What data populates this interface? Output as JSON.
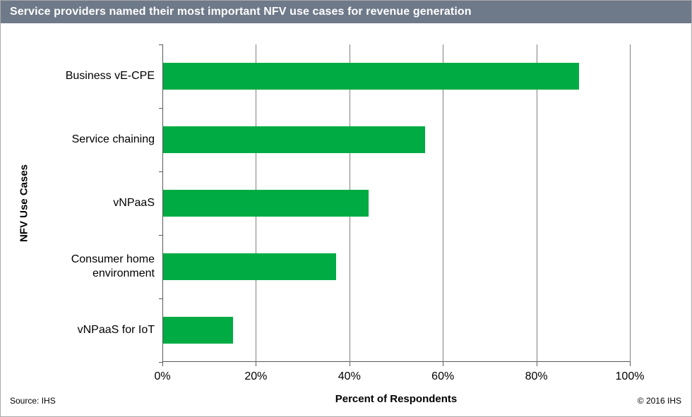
{
  "header": {
    "title": "Service providers named their most important NFV use cases for revenue generation"
  },
  "chart_data": {
    "type": "bar",
    "orientation": "horizontal",
    "title": "Service providers named their most important NFV use cases for revenue generation",
    "categories": [
      "Business vE-CPE",
      "Service chaining",
      "vNPaaS",
      "Consumer home environment",
      "vNPaaS for IoT"
    ],
    "values": [
      89,
      56,
      44,
      37,
      15
    ],
    "unit": "%",
    "xlabel": "Percent of Respondents",
    "ylabel": "NFV Use Cases",
    "xlim": [
      0,
      100
    ],
    "x_tick_values": [
      0,
      20,
      40,
      60,
      80,
      100
    ],
    "x_tick_labels": [
      "0%",
      "20%",
      "40%",
      "60%",
      "80%",
      "100%"
    ],
    "grid": "vertical-only",
    "legend": "none"
  },
  "footer": {
    "source": "Source: IHS",
    "copyright": "© 2016 IHS"
  },
  "colors": {
    "bar": "#00AB44",
    "header_bg": "#6E7A89",
    "header_text": "#FFFFFF",
    "gridline": "#808080",
    "axis": "#595959",
    "border": "#A9A9A9",
    "background": "#FFFFFF"
  }
}
